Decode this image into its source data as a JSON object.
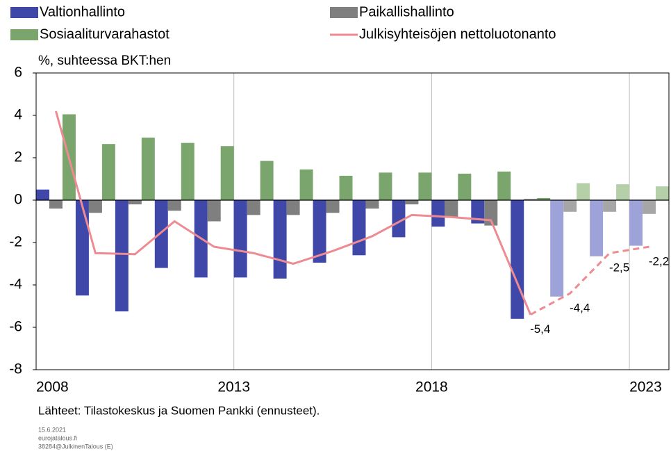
{
  "chart_data": {
    "type": "bar_line",
    "y_axis_label": "%, suhteessa BKT:hen",
    "categories": [
      "2008",
      null,
      null,
      null,
      null,
      "2013",
      null,
      null,
      null,
      null,
      "2018",
      null,
      null,
      null,
      null,
      "2023"
    ],
    "series": [
      {
        "name": "Valtionhallinto",
        "type": "bar",
        "color": "#3f48a8",
        "colors": [
          "#3f48a8",
          "#3f48a8",
          "#3f48a8",
          "#3f48a8",
          "#3f48a8",
          "#3f48a8",
          "#3f48a8",
          "#3f48a8",
          "#3f48a8",
          "#3f48a8",
          "#3f48a8",
          "#3f48a8",
          "#3f48a8",
          "#9da3d8",
          "#9da3d8",
          "#9da3d8"
        ],
        "values": [
          0.5,
          -4.5,
          -5.25,
          -3.2,
          -3.65,
          -3.65,
          -3.7,
          -2.95,
          -2.6,
          -1.75,
          -1.25,
          -1.1,
          -5.6,
          -4.55,
          -2.65,
          -2.15
        ]
      },
      {
        "name": "Paikallishallinto",
        "type": "bar",
        "color": "#7f7f7f",
        "colors": [
          "#7f7f7f",
          "#7f7f7f",
          "#7f7f7f",
          "#7f7f7f",
          "#7f7f7f",
          "#7f7f7f",
          "#7f7f7f",
          "#7f7f7f",
          "#7f7f7f",
          "#7f7f7f",
          "#7f7f7f",
          "#7f7f7f",
          "#7f7f7f",
          "#a6a6a6",
          "#a6a6a6",
          "#a6a6a6"
        ],
        "values": [
          -0.4,
          -0.6,
          -0.2,
          -0.5,
          -1.0,
          -0.7,
          -0.7,
          -0.6,
          -0.4,
          -0.2,
          -0.8,
          -1.2,
          0.05,
          -0.55,
          -0.55,
          -0.65
        ]
      },
      {
        "name": "Sosiaaliturvarahastot",
        "type": "bar",
        "color": "#7aa66e",
        "colors": [
          "#7aa66e",
          "#7aa66e",
          "#7aa66e",
          "#7aa66e",
          "#7aa66e",
          "#7aa66e",
          "#7aa66e",
          "#7aa66e",
          "#7aa66e",
          "#7aa66e",
          "#7aa66e",
          "#7aa66e",
          "#7aa66e",
          "#b5cfa8",
          "#b5cfa8",
          "#b5cfa8"
        ],
        "values": [
          4.05,
          2.65,
          2.95,
          2.7,
          2.55,
          1.85,
          1.45,
          1.15,
          1.3,
          1.3,
          1.25,
          1.35,
          0.1,
          0.8,
          0.75,
          0.65
        ]
      },
      {
        "name": "Julkisyhteisöjen nettoluotonanto",
        "type": "line",
        "color": "#ee8a92",
        "dashed": [
          false,
          false,
          false,
          false,
          false,
          false,
          false,
          false,
          false,
          false,
          false,
          false,
          false,
          true,
          true,
          true
        ],
        "values": [
          4.2,
          -2.5,
          -2.55,
          -1.0,
          -2.2,
          -2.5,
          -3.0,
          -2.4,
          -1.7,
          -0.7,
          -0.8,
          -0.95,
          -5.4,
          -4.4,
          -2.5,
          -2.2
        ],
        "value_labels": [
          null,
          null,
          null,
          null,
          null,
          null,
          null,
          null,
          null,
          null,
          null,
          null,
          "-5,4",
          "-4,4",
          "-2,5",
          "-2,2"
        ]
      }
    ],
    "ylim": [
      -8,
      6
    ],
    "yticks": [
      -8,
      -6,
      -4,
      -2,
      0,
      2,
      4,
      6
    ],
    "source": "Lähteet: Tilastokeskus ja Suomen Pankki (ennusteet).",
    "footer": [
      "15.6.2021",
      "eurojatalous.fi",
      "38284@JulkinenTalous (E)"
    ]
  }
}
